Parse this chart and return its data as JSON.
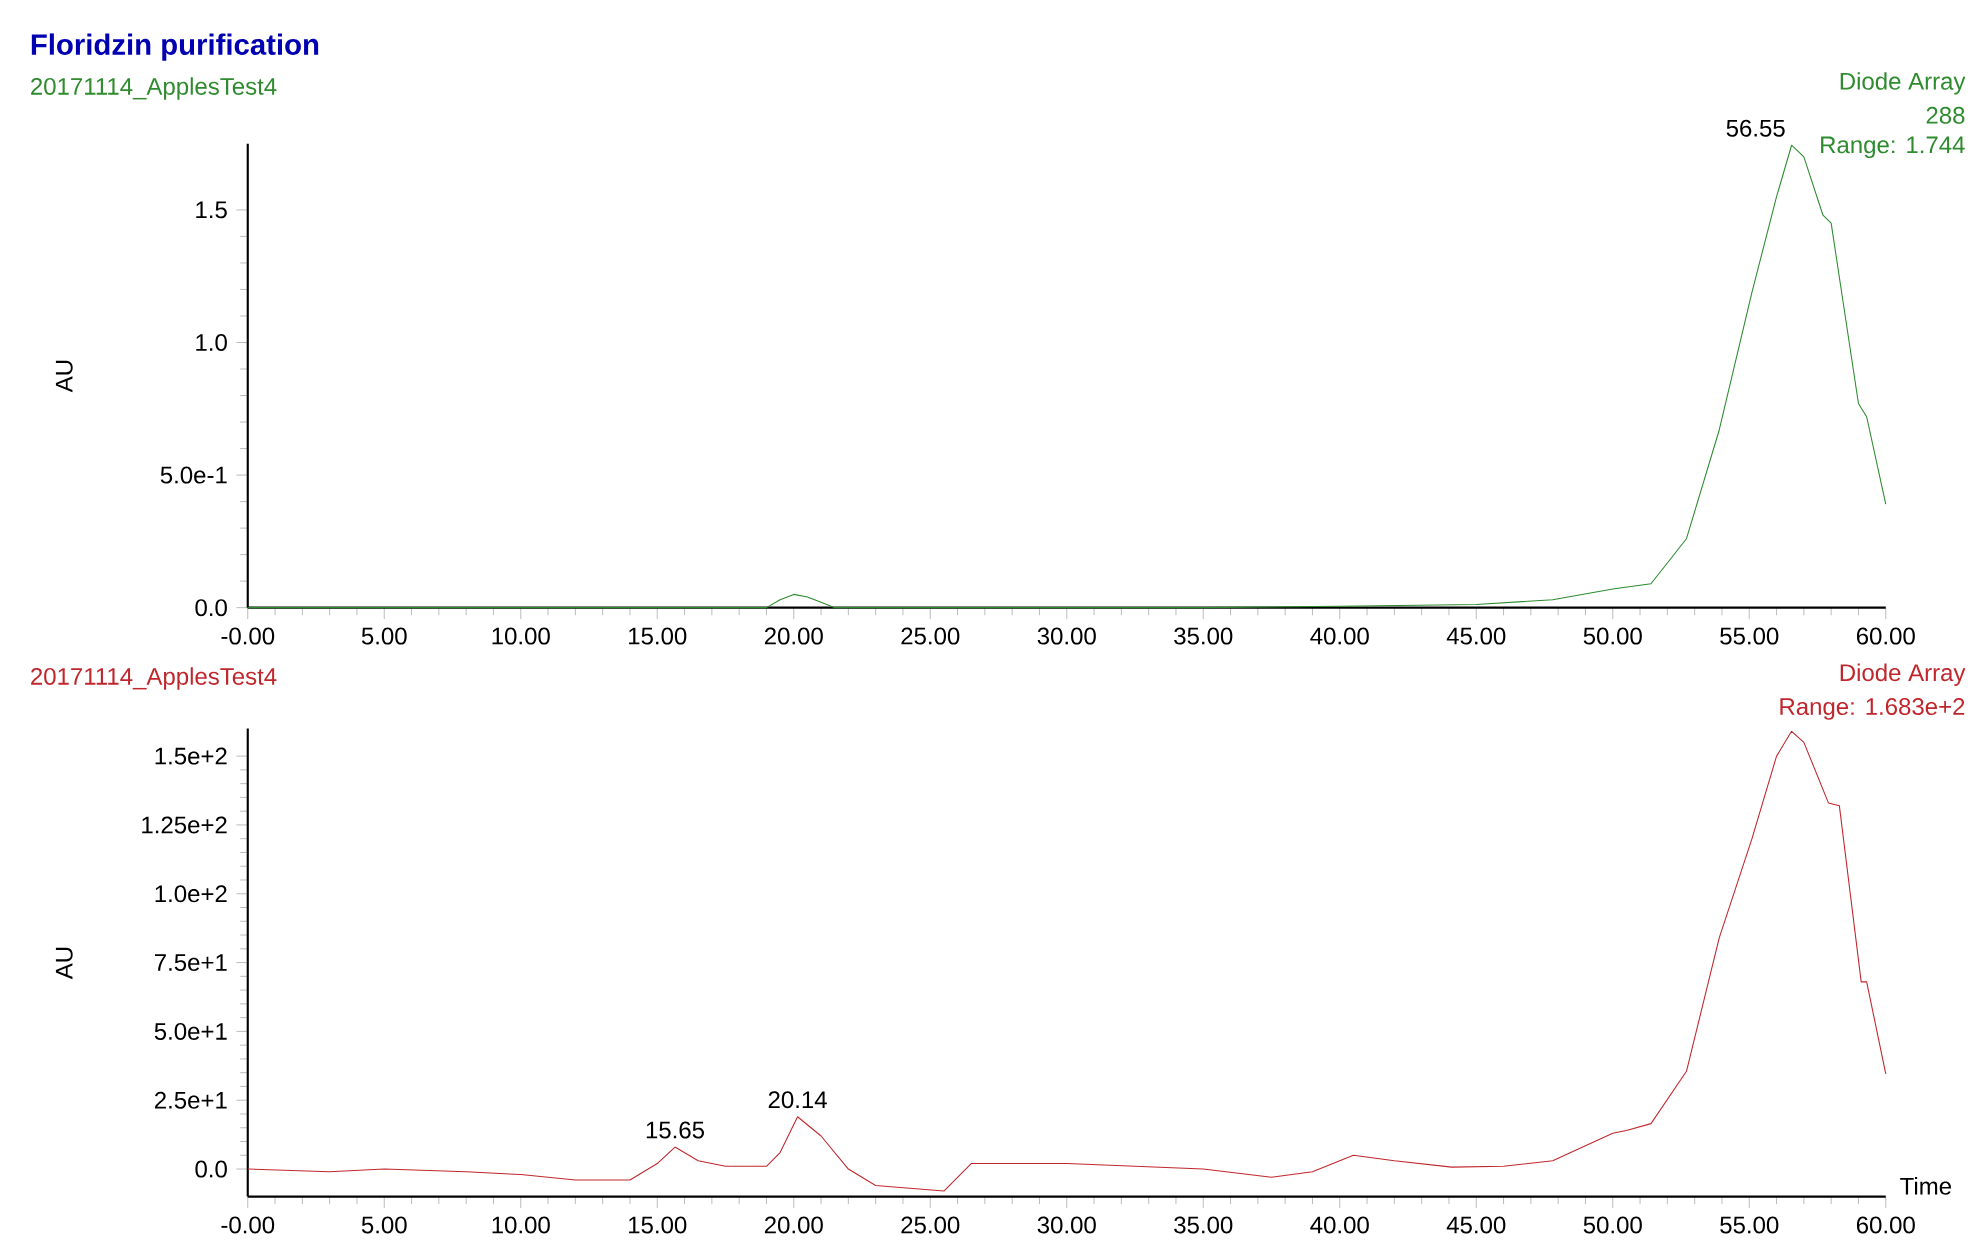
{
  "chart_data": [
    {
      "type": "line",
      "title": "Floridzin purification",
      "subtitle": "20171114_ApplesTest4",
      "ylabel": "AU",
      "series": [
        {
          "color": "#2e8b2e",
          "x": [
            0,
            5,
            10,
            15,
            19,
            19.5,
            20,
            20.5,
            21,
            21.5,
            25,
            30,
            35,
            40,
            45,
            47.8,
            50,
            51.4,
            52.7,
            53.9,
            55.1,
            56,
            56.55,
            57,
            57.7,
            58,
            59,
            59.3,
            60
          ],
          "values": [
            0,
            0,
            0,
            0,
            0,
            0.03,
            0.05,
            0.04,
            0.02,
            0,
            0,
            0,
            0,
            0.005,
            0.012,
            0.03,
            0.07,
            0.09,
            0.26,
            0.67,
            1.19,
            1.55,
            1.744,
            1.7,
            1.48,
            1.45,
            0.77,
            0.72,
            0.39
          ]
        }
      ],
      "xlim": [
        0,
        60
      ],
      "ylim": [
        0,
        1.75
      ],
      "xticks": [
        {
          "value": 0,
          "label": "-0.00"
        },
        {
          "value": 5,
          "label": "5.00"
        },
        {
          "value": 10,
          "label": "10.00"
        },
        {
          "value": 15,
          "label": "15.00"
        },
        {
          "value": 20,
          "label": "20.00"
        },
        {
          "value": 25,
          "label": "25.00"
        },
        {
          "value": 30,
          "label": "30.00"
        },
        {
          "value": 35,
          "label": "35.00"
        },
        {
          "value": 40,
          "label": "40.00"
        },
        {
          "value": 45,
          "label": "45.00"
        },
        {
          "value": 50,
          "label": "50.00"
        },
        {
          "value": 55,
          "label": "55.00"
        },
        {
          "value": 60,
          "label": "60.00"
        }
      ],
      "yticks": [
        {
          "value": 0,
          "label": "0.0"
        },
        {
          "value": 0.5,
          "label": "5.0e-1"
        },
        {
          "value": 1,
          "label": "1.0"
        },
        {
          "value": 1.5,
          "label": "1.5"
        }
      ],
      "annotations": [
        {
          "text": "56.55",
          "x": 56.55,
          "y": 1.744
        },
        "Diode Array",
        "288",
        "Range: 1.744"
      ]
    },
    {
      "type": "line",
      "subtitle": "20171114_ApplesTest4",
      "xlabel": "Time",
      "ylabel": "AU",
      "series": [
        {
          "color": "#c0272d",
          "x": [
            0,
            3,
            5,
            8,
            10,
            12,
            14,
            15,
            15.65,
            16.5,
            17.5,
            19,
            19.5,
            20.14,
            21,
            22,
            23,
            25.5,
            26,
            26.5,
            30,
            35,
            37.5,
            39,
            40.5,
            42,
            44.1,
            46,
            47.8,
            50,
            50.5,
            51.4,
            52.7,
            53.9,
            55.1,
            56,
            56.55,
            57,
            57.9,
            58.3,
            59.1,
            59.3,
            60
          ],
          "values": [
            0,
            -1,
            0,
            -1,
            -2,
            -4,
            -4,
            2,
            8,
            3,
            1,
            1,
            6,
            19,
            12,
            0,
            -6,
            -8,
            -3,
            2,
            2,
            0,
            -3,
            -1,
            5,
            3,
            0.7,
            1,
            3,
            13,
            14,
            16.5,
            35.5,
            84,
            120,
            150,
            159,
            155,
            133,
            132,
            68,
            68,
            34.6
          ]
        }
      ],
      "xlim": [
        0,
        60
      ],
      "ylim": [
        -10,
        160
      ],
      "xticks": [
        {
          "value": 0,
          "label": "-0.00"
        },
        {
          "value": 5,
          "label": "5.00"
        },
        {
          "value": 10,
          "label": "10.00"
        },
        {
          "value": 15,
          "label": "15.00"
        },
        {
          "value": 20,
          "label": "20.00"
        },
        {
          "value": 25,
          "label": "25.00"
        },
        {
          "value": 30,
          "label": "30.00"
        },
        {
          "value": 35,
          "label": "35.00"
        },
        {
          "value": 40,
          "label": "40.00"
        },
        {
          "value": 45,
          "label": "45.00"
        },
        {
          "value": 50,
          "label": "50.00"
        },
        {
          "value": 55,
          "label": "55.00"
        },
        {
          "value": 60,
          "label": "60.00"
        }
      ],
      "yticks": [
        {
          "value": 0,
          "label": "0.0"
        },
        {
          "value": 25,
          "label": "2.5e+1"
        },
        {
          "value": 50,
          "label": "5.0e+1"
        },
        {
          "value": 75,
          "label": "7.5e+1"
        },
        {
          "value": 100,
          "label": "1.0e+2"
        },
        {
          "value": 125,
          "label": "1.25e+2"
        },
        {
          "value": 150,
          "label": "1.5e+2"
        }
      ],
      "annotations": [
        {
          "text": "15.65",
          "x": 15.65,
          "y": 8
        },
        {
          "text": "20.14",
          "x": 20.14,
          "y": 19
        },
        "Diode Array",
        "Range: 1.683e+2"
      ]
    }
  ]
}
